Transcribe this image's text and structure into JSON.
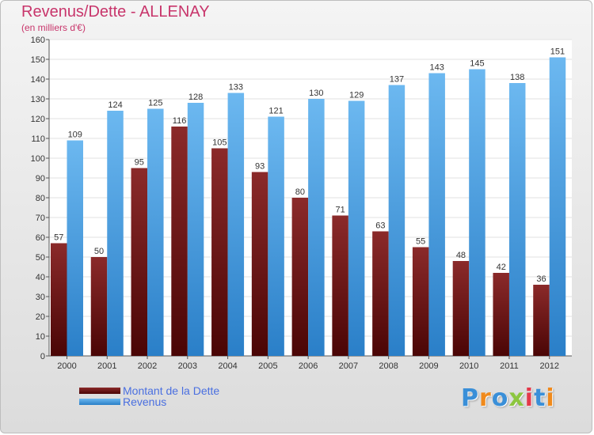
{
  "title": "Revenus/Dette - ALLENAY",
  "subtitle": "(en milliers d'€)",
  "brand": "Proxiti",
  "colors": {
    "debt_top": "#8b2a2a",
    "debt_bottom": "#4a0505",
    "revenue_top": "#6cb8f0",
    "revenue_bottom": "#2a7fc8",
    "title": "#c8356b",
    "legend_text": "#4a6fe0"
  },
  "chart_data": {
    "type": "bar",
    "title": "Revenus/Dette - ALLENAY",
    "subtitle": "(en milliers d'€)",
    "categories": [
      "2000",
      "2001",
      "2002",
      "2003",
      "2004",
      "2005",
      "2006",
      "2007",
      "2008",
      "2009",
      "2010",
      "2011",
      "2012"
    ],
    "series": [
      {
        "name": "Montant de la Dette",
        "values": [
          57,
          50,
          95,
          116,
          105,
          93,
          80,
          71,
          63,
          55,
          48,
          42,
          36
        ]
      },
      {
        "name": "Revenus",
        "values": [
          109,
          124,
          125,
          128,
          133,
          121,
          130,
          129,
          137,
          143,
          145,
          138,
          151
        ]
      }
    ],
    "ylim": [
      0,
      160
    ],
    "yticks": [
      0,
      10,
      20,
      30,
      40,
      50,
      60,
      70,
      80,
      90,
      100,
      110,
      120,
      130,
      140,
      150,
      160
    ],
    "grid": true,
    "legend_position": "bottom-left",
    "data_labels": true
  }
}
